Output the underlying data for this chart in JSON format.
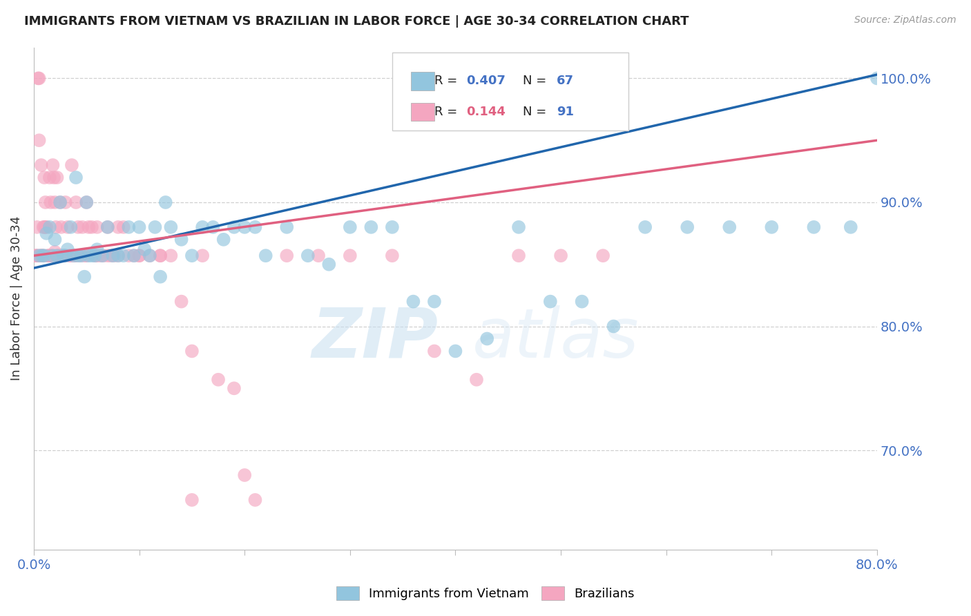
{
  "title": "IMMIGRANTS FROM VIETNAM VS BRAZILIAN IN LABOR FORCE | AGE 30-34 CORRELATION CHART",
  "source": "Source: ZipAtlas.com",
  "ylabel": "In Labor Force | Age 30-34",
  "xlim": [
    0.0,
    0.8
  ],
  "ylim": [
    0.62,
    1.025
  ],
  "yticks": [
    0.7,
    0.8,
    0.9,
    1.0
  ],
  "yticklabels": [
    "70.0%",
    "80.0%",
    "90.0%",
    "100.0%"
  ],
  "xticks": [
    0.0,
    0.1,
    0.2,
    0.3,
    0.4,
    0.5,
    0.6,
    0.7,
    0.8
  ],
  "watermark": "ZIPatlas",
  "legend_blue_label": "Immigrants from Vietnam",
  "legend_pink_label": "Brazilians",
  "legend_blue_R": "0.407",
  "legend_blue_N": "67",
  "legend_pink_R": "0.144",
  "legend_pink_N": "91",
  "blue_color": "#92c5de",
  "pink_color": "#f4a6c0",
  "blue_line_color": "#2166ac",
  "pink_line_color": "#e06080",
  "title_color": "#222222",
  "axis_label_color": "#4472c4",
  "grid_color": "#d0d0d0",
  "blue_line_x0": 0.0,
  "blue_line_x1": 0.8,
  "blue_line_y0": 0.847,
  "blue_line_y1": 1.003,
  "pink_line_x0": 0.0,
  "pink_line_x1": 0.8,
  "pink_line_y0": 0.857,
  "pink_line_y1": 0.95,
  "blue_x": [
    0.005,
    0.008,
    0.01,
    0.012,
    0.015,
    0.018,
    0.02,
    0.022,
    0.025,
    0.028,
    0.03,
    0.032,
    0.035,
    0.038,
    0.04,
    0.042,
    0.045,
    0.048,
    0.05,
    0.052,
    0.055,
    0.058,
    0.06,
    0.065,
    0.07,
    0.075,
    0.08,
    0.085,
    0.09,
    0.095,
    0.1,
    0.105,
    0.11,
    0.115,
    0.12,
    0.125,
    0.13,
    0.14,
    0.15,
    0.16,
    0.17,
    0.18,
    0.19,
    0.2,
    0.21,
    0.22,
    0.24,
    0.26,
    0.28,
    0.3,
    0.32,
    0.34,
    0.36,
    0.38,
    0.4,
    0.43,
    0.46,
    0.49,
    0.52,
    0.55,
    0.58,
    0.62,
    0.66,
    0.7,
    0.74,
    0.775,
    0.8
  ],
  "blue_y": [
    0.857,
    0.857,
    0.857,
    0.875,
    0.88,
    0.857,
    0.87,
    0.857,
    0.9,
    0.857,
    0.857,
    0.862,
    0.88,
    0.857,
    0.92,
    0.857,
    0.857,
    0.84,
    0.9,
    0.857,
    0.857,
    0.857,
    0.862,
    0.857,
    0.88,
    0.857,
    0.857,
    0.857,
    0.88,
    0.857,
    0.88,
    0.862,
    0.857,
    0.88,
    0.84,
    0.9,
    0.88,
    0.87,
    0.857,
    0.88,
    0.88,
    0.87,
    0.88,
    0.88,
    0.88,
    0.857,
    0.88,
    0.857,
    0.85,
    0.88,
    0.88,
    0.88,
    0.82,
    0.82,
    0.78,
    0.79,
    0.88,
    0.82,
    0.82,
    0.8,
    0.88,
    0.88,
    0.88,
    0.88,
    0.88,
    0.88,
    1.0
  ],
  "pink_x": [
    0.002,
    0.003,
    0.004,
    0.005,
    0.006,
    0.007,
    0.008,
    0.009,
    0.01,
    0.011,
    0.012,
    0.013,
    0.014,
    0.015,
    0.016,
    0.017,
    0.018,
    0.019,
    0.02,
    0.021,
    0.022,
    0.023,
    0.024,
    0.025,
    0.026,
    0.027,
    0.028,
    0.03,
    0.032,
    0.034,
    0.036,
    0.038,
    0.04,
    0.042,
    0.044,
    0.046,
    0.048,
    0.05,
    0.052,
    0.055,
    0.058,
    0.06,
    0.063,
    0.066,
    0.07,
    0.073,
    0.076,
    0.08,
    0.085,
    0.09,
    0.095,
    0.1,
    0.11,
    0.12,
    0.13,
    0.14,
    0.15,
    0.16,
    0.175,
    0.19,
    0.21,
    0.24,
    0.27,
    0.3,
    0.34,
    0.38,
    0.42,
    0.46,
    0.5,
    0.54,
    0.002,
    0.003,
    0.005,
    0.007,
    0.009,
    0.011,
    0.015,
    0.02,
    0.025,
    0.03,
    0.035,
    0.04,
    0.05,
    0.06,
    0.07,
    0.08,
    0.1,
    0.12,
    0.15,
    0.2,
    0.01
  ],
  "pink_y": [
    0.857,
    0.857,
    1.0,
    1.0,
    0.857,
    0.857,
    0.857,
    0.88,
    0.92,
    0.9,
    0.88,
    0.857,
    0.857,
    0.92,
    0.9,
    0.857,
    0.93,
    0.92,
    0.9,
    0.88,
    0.92,
    0.857,
    0.857,
    0.9,
    0.88,
    0.857,
    0.857,
    0.9,
    0.88,
    0.857,
    0.93,
    0.857,
    0.9,
    0.88,
    0.857,
    0.88,
    0.857,
    0.9,
    0.88,
    0.88,
    0.857,
    0.88,
    0.857,
    0.857,
    0.88,
    0.857,
    0.857,
    0.88,
    0.88,
    0.857,
    0.857,
    0.857,
    0.857,
    0.857,
    0.857,
    0.82,
    0.78,
    0.857,
    0.757,
    0.75,
    0.66,
    0.857,
    0.857,
    0.857,
    0.857,
    0.78,
    0.757,
    0.857,
    0.857,
    0.857,
    0.857,
    0.88,
    0.95,
    0.93,
    0.857,
    0.88,
    0.857,
    0.86,
    0.857,
    0.857,
    0.857,
    0.857,
    0.857,
    0.857,
    0.857,
    0.857,
    0.857,
    0.857,
    0.66,
    0.68,
    0.88
  ]
}
